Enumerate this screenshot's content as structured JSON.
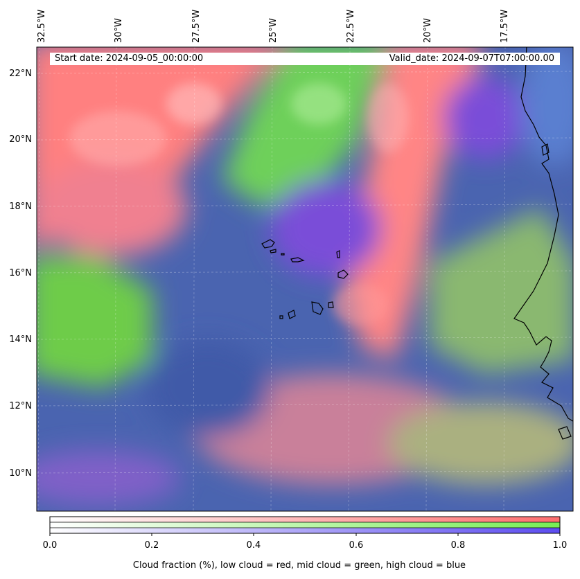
{
  "map": {
    "region": "Cape Verde and West African coast",
    "start_date_text": "Start date: 2024-09-05_00:00:00",
    "valid_date_text": "Valid_date: 2024-09-07T07:00:00.00",
    "longitude_labels": [
      "32.5°W",
      "30°W",
      "27.5°W",
      "25°W",
      "22.5°W",
      "20°W",
      "17.5°W"
    ],
    "latitude_labels": [
      "22°N",
      "20°N",
      "18°N",
      "16°N",
      "14°N",
      "12°N",
      "10°N"
    ],
    "colors": {
      "low_cloud": "#ff7f7f",
      "mid_cloud": "#7fff66",
      "high_cloud": "#5a4cff",
      "clear_sky_blue": "#3f66b8",
      "coastline": "#000000"
    }
  },
  "colorbar": {
    "tick_labels": [
      "0.0",
      "0.2",
      "0.4",
      "0.6",
      "0.8",
      "1.0"
    ],
    "title": "Cloud fraction (%), low cloud = red, mid cloud = green, high cloud = blue",
    "rows": [
      "low cloud",
      "mid cloud",
      "high cloud"
    ]
  }
}
